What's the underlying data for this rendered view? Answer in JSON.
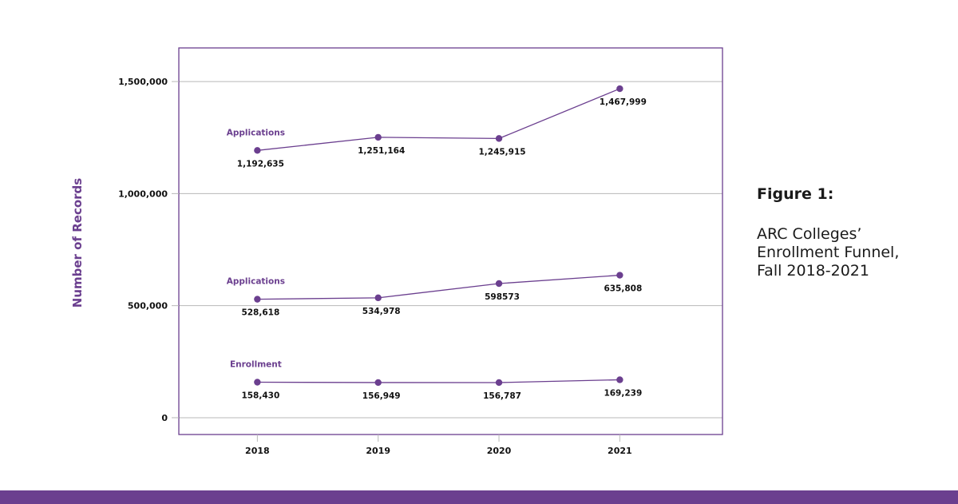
{
  "figure": {
    "number": "Figure 1:",
    "title": "ARC Colleges’\nEnrollment Funnel,\nFall 2018-2021"
  },
  "colors": {
    "accent": "#6b3f8f",
    "gridline": "#b8b8b8",
    "frame": "#6b3f8f",
    "text": "#111111",
    "band": "#6b3f8f"
  },
  "chart_data": {
    "type": "line",
    "title": "",
    "xlabel": "",
    "ylabel": "Number of Records",
    "categories": [
      "2018",
      "2019",
      "2020",
      "2021"
    ],
    "ylim": [
      -75000,
      1650000
    ],
    "xlim": [
      2017.35,
      2021.85
    ],
    "yticks": [
      0,
      500000,
      1000000,
      1500000
    ],
    "ytick_labels": [
      "0",
      "500,000",
      "1,000,000",
      "1,500,000"
    ],
    "grid": true,
    "legend": "none",
    "series": [
      {
        "name": "Applications",
        "values": [
          1192635,
          1251164,
          1245915,
          1467999
        ],
        "labels": [
          "1,192,635",
          "1,251,164",
          "1,245,915",
          "1,467,999"
        ]
      },
      {
        "name": "Applications",
        "values": [
          528618,
          534978,
          598573,
          635808
        ],
        "labels": [
          "528,618",
          "534,978",
          "598573",
          "635,808"
        ]
      },
      {
        "name": "Enrollment",
        "values": [
          158430,
          156949,
          156787,
          169239
        ],
        "labels": [
          "158,430",
          "156,949",
          "156,787",
          "169,239"
        ]
      }
    ]
  }
}
